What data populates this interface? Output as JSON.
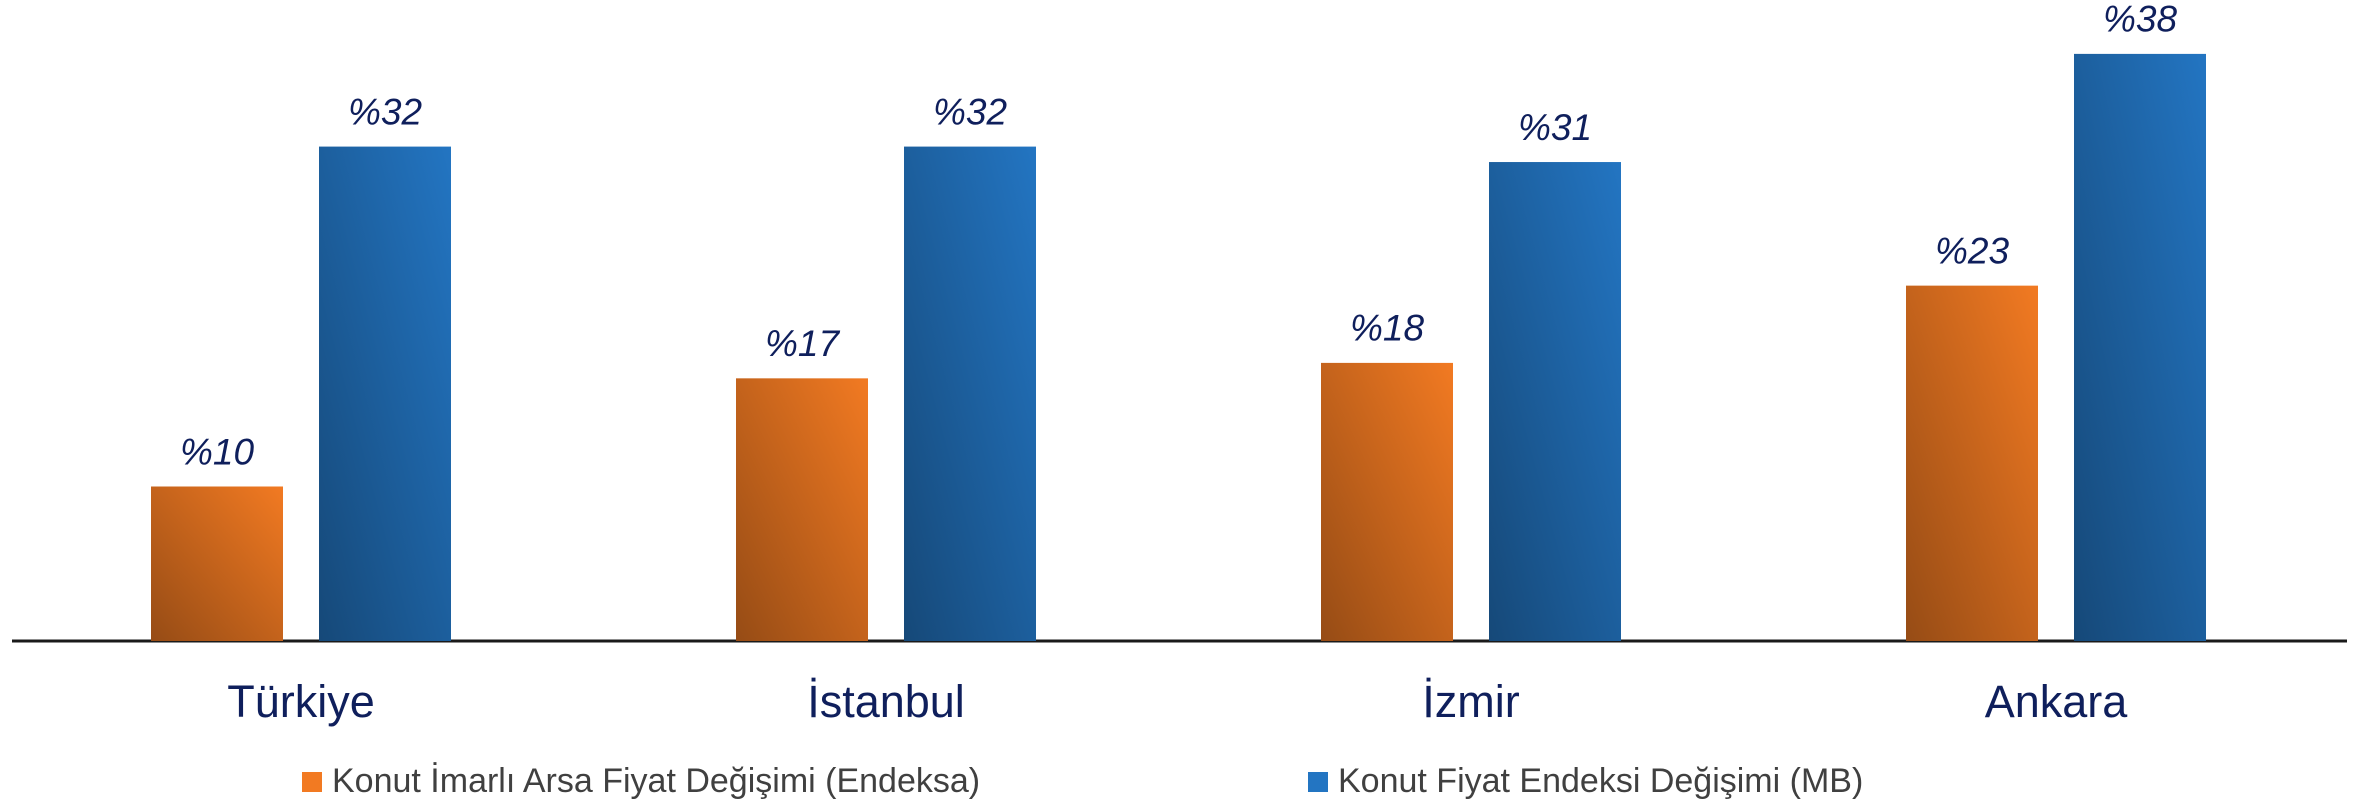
{
  "chart_data": {
    "type": "bar",
    "categories": [
      "Türkiye",
      "İstanbul",
      "İzmir",
      "Ankara"
    ],
    "series": [
      {
        "name": "Konut İmarlı Arsa Fiyat Değişimi (Endeksa)",
        "color": "#f27a22",
        "values": [
          10,
          17,
          18,
          23
        ],
        "value_labels": [
          "%10",
          "%17",
          "%18",
          "%23"
        ]
      },
      {
        "name": "Konut Fiyat Endeksi Değişimi (MB)",
        "color": "#2375c2",
        "values": [
          32,
          32,
          31,
          38
        ],
        "value_labels": [
          "%32",
          "%32",
          "%31",
          "%38"
        ]
      }
    ],
    "ylim": [
      0,
      40
    ],
    "legend": "bottom"
  }
}
